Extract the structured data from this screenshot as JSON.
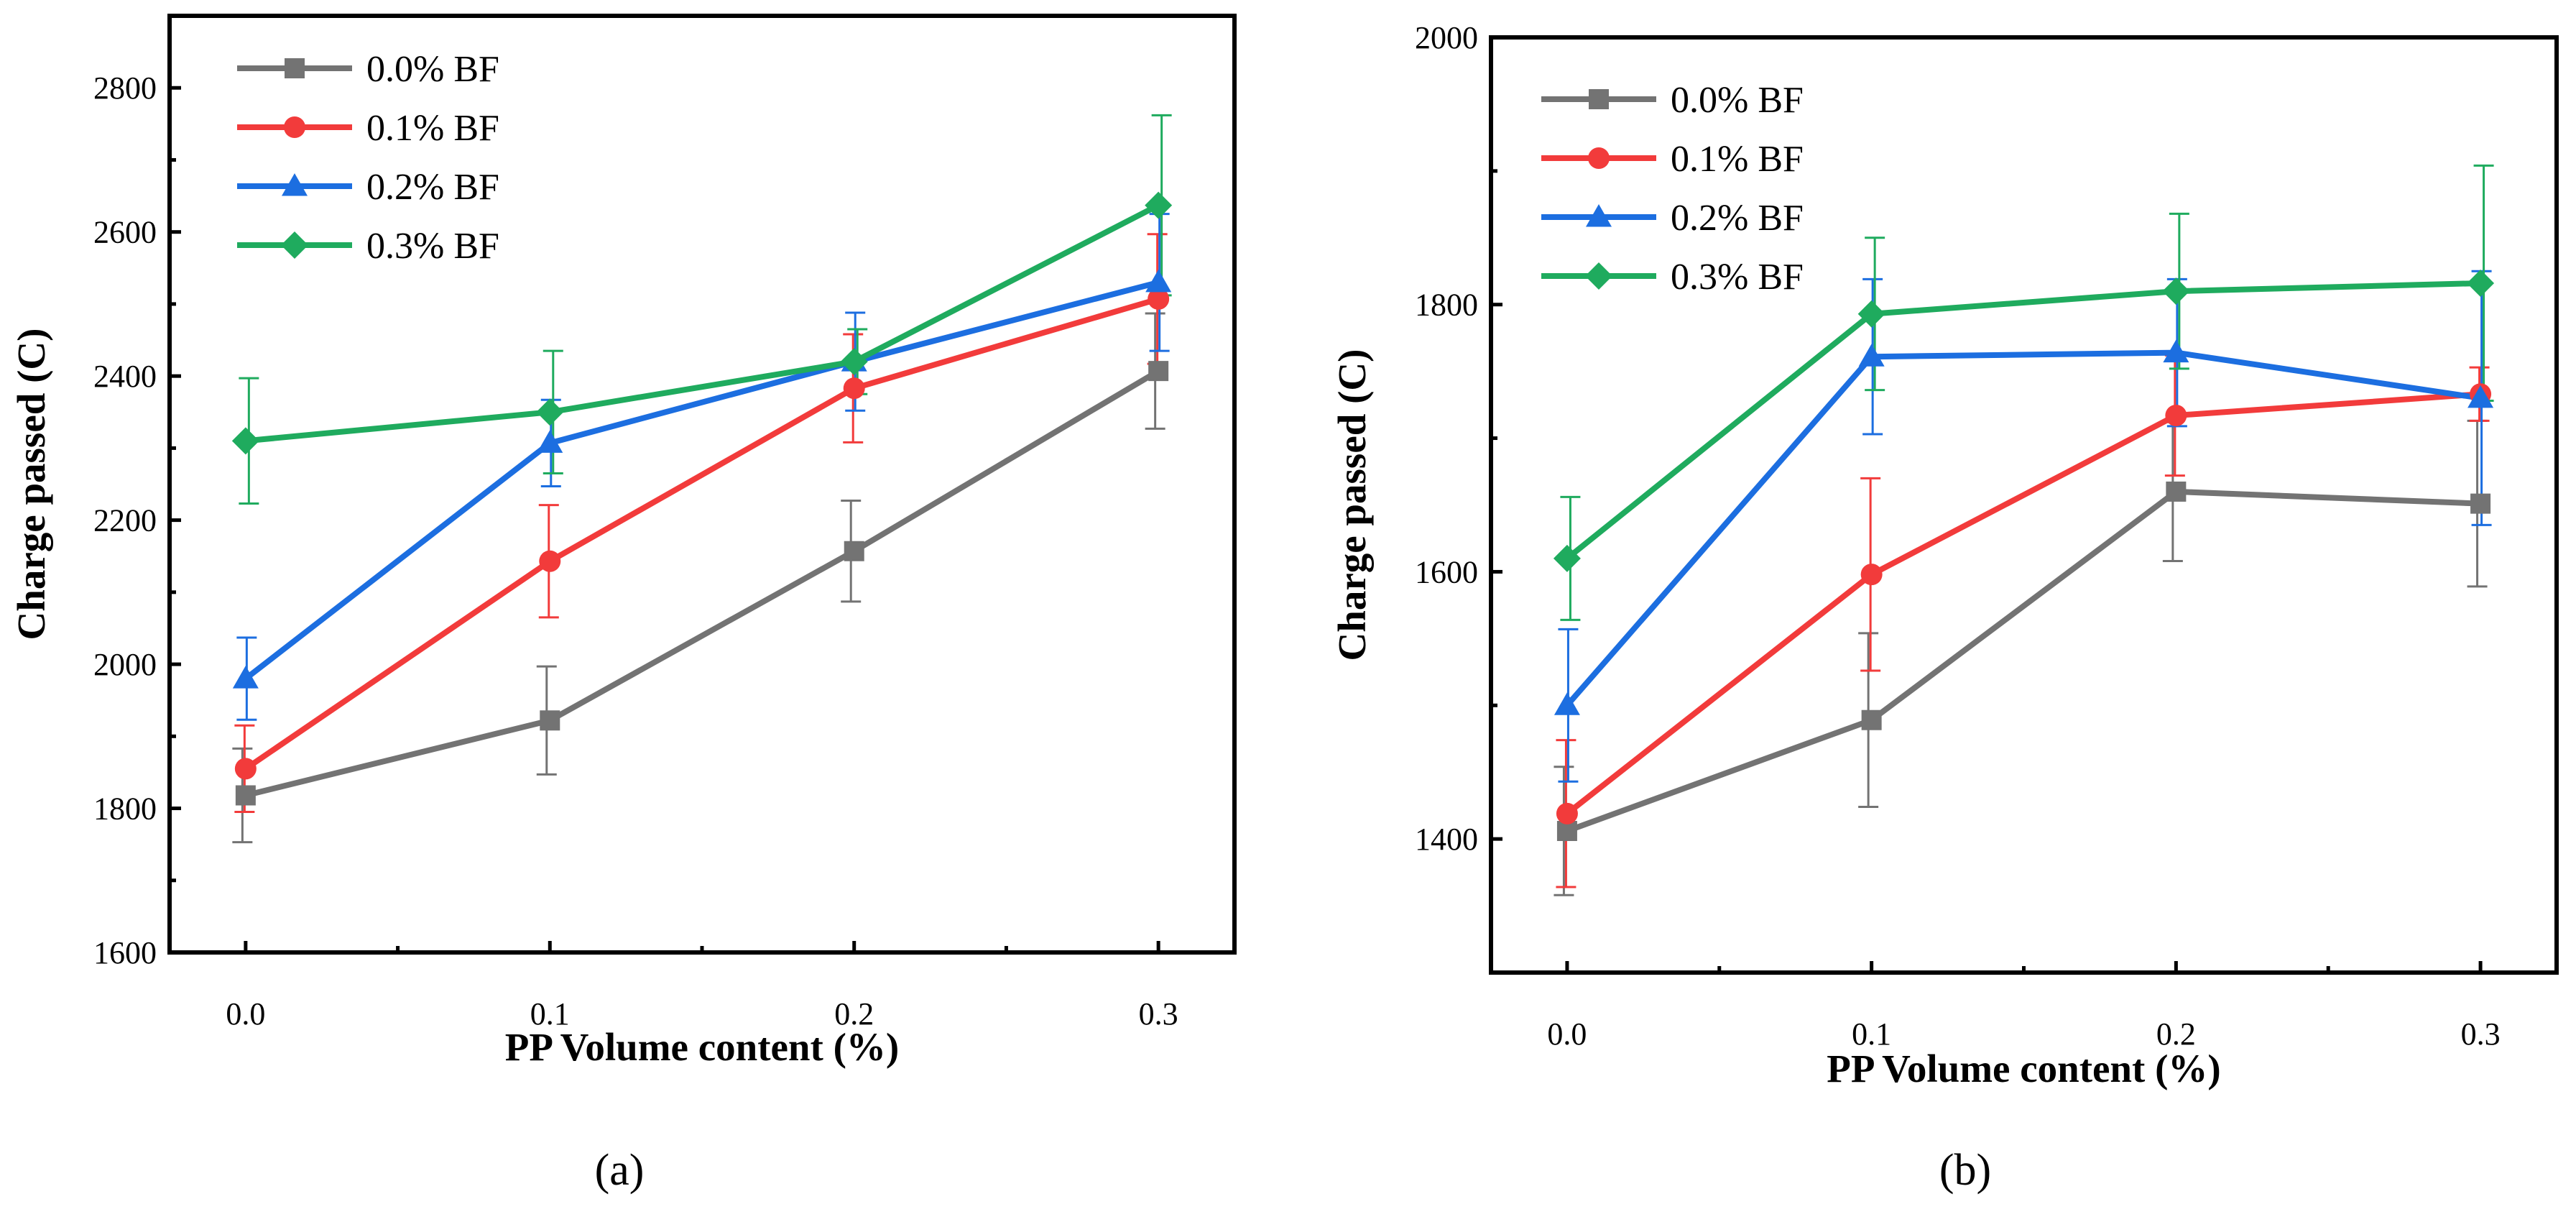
{
  "chart_data": [
    {
      "type": "line",
      "panel_label": "(a)",
      "xlabel": "PP Volume content (%)",
      "ylabel": "Charge passed (C)",
      "x": [
        0.0,
        0.1,
        0.2,
        0.3
      ],
      "x_tick_labels": [
        "0.0",
        "0.1",
        "0.2",
        "0.3"
      ],
      "xlim": [
        -0.025,
        0.325
      ],
      "ylim": [
        1600,
        2900
      ],
      "y_ticks": [
        1600,
        1800,
        2000,
        2200,
        2400,
        2600,
        2800
      ],
      "y_tick_labels": [
        "1600",
        "1800",
        "2000",
        "2200",
        "2400",
        "2600",
        "2800"
      ],
      "legend_position": "top-left",
      "grid": false,
      "series": [
        {
          "name": "0.0% BF",
          "color": "#737373",
          "marker": "square",
          "values": [
            1818,
            1922,
            2157,
            2407
          ],
          "errors": [
            65,
            75,
            70,
            80
          ]
        },
        {
          "name": "0.1% BF",
          "color": "#f23b3b",
          "marker": "circle",
          "values": [
            1855,
            2143,
            2383,
            2507
          ],
          "errors": [
            60,
            78,
            75,
            90
          ]
        },
        {
          "name": "0.2% BF",
          "color": "#1c6ee0",
          "marker": "triangle",
          "values": [
            1980,
            2307,
            2420,
            2530
          ],
          "errors": [
            57,
            60,
            68,
            95
          ]
        },
        {
          "name": "0.3% BF",
          "color": "#1fab5e",
          "marker": "diamond",
          "values": [
            2310,
            2350,
            2420,
            2637
          ],
          "errors": [
            87,
            85,
            45,
            125
          ]
        }
      ]
    },
    {
      "type": "line",
      "panel_label": "(b)",
      "xlabel": "PP Volume content (%)",
      "ylabel": "Charge passed (C)",
      "x": [
        0.0,
        0.1,
        0.2,
        0.3
      ],
      "x_tick_labels": [
        "0.0",
        "0.1",
        "0.2",
        "0.3"
      ],
      "xlim": [
        -0.025,
        0.325
      ],
      "ylim": [
        1300,
        2000
      ],
      "y_ticks": [
        1400,
        1600,
        1800,
        2000
      ],
      "y_tick_labels": [
        "1400",
        "1600",
        "1800",
        "2000"
      ],
      "legend_position": "top-left",
      "grid": false,
      "series": [
        {
          "name": "0.0% BF",
          "color": "#737373",
          "marker": "square",
          "values": [
            1406,
            1489,
            1660,
            1651
          ],
          "errors": [
            48,
            65,
            52,
            62
          ]
        },
        {
          "name": "0.1% BF",
          "color": "#f23b3b",
          "marker": "circle",
          "values": [
            1419,
            1598,
            1717,
            1733
          ],
          "errors": [
            55,
            72,
            45,
            20
          ]
        },
        {
          "name": "0.2% BF",
          "color": "#1c6ee0",
          "marker": "triangle",
          "values": [
            1500,
            1761,
            1764,
            1730
          ],
          "errors": [
            57,
            58,
            55,
            95
          ]
        },
        {
          "name": "0.3% BF",
          "color": "#1fab5e",
          "marker": "diamond",
          "values": [
            1610,
            1793,
            1810,
            1816
          ],
          "errors": [
            46,
            57,
            58,
            88
          ]
        }
      ]
    }
  ]
}
